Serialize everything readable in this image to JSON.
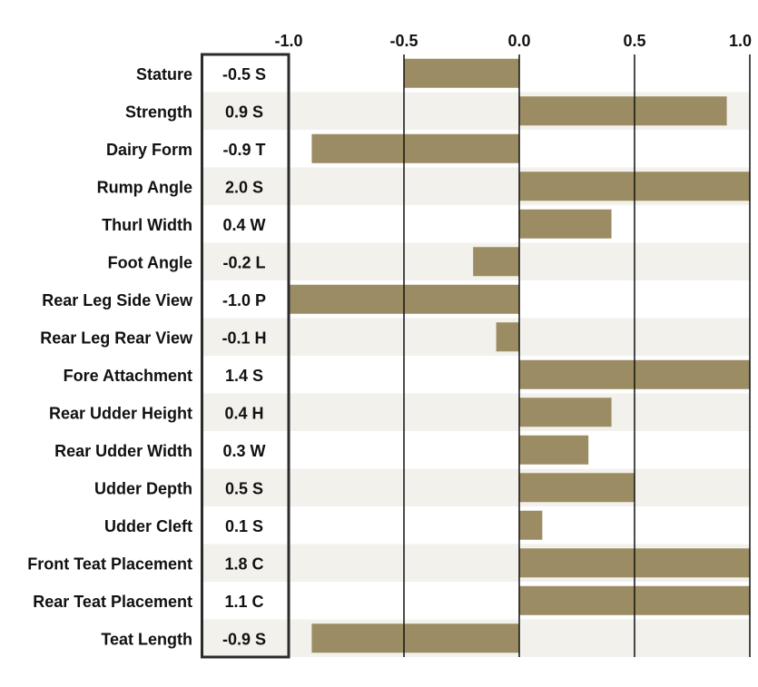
{
  "chart_data": {
    "type": "bar",
    "orientation": "horizontal",
    "categories": [
      "Stature",
      "Strength",
      "Dairy Form",
      "Rump Angle",
      "Thurl Width",
      "Foot Angle",
      "Rear Leg Side View",
      "Rear Leg Rear View",
      "Fore Attachment",
      "Rear Udder Height",
      "Rear Udder Width",
      "Udder Depth",
      "Udder Cleft",
      "Front Teat Placement",
      "Rear Teat Placement",
      "Teat Length"
    ],
    "values": [
      -0.5,
      0.9,
      -0.9,
      2.0,
      0.4,
      -0.2,
      -1.0,
      -0.1,
      1.4,
      0.4,
      0.3,
      0.5,
      0.1,
      1.8,
      1.1,
      -0.9
    ],
    "value_labels": [
      "-0.5 S",
      "0.9 S",
      "-0.9 T",
      "2.0 S",
      "0.4 W",
      "-0.2 L",
      "-1.0 P",
      "-0.1 H",
      "1.4 S",
      "0.4 H",
      "0.3 W",
      "0.5 S",
      "0.1 S",
      "1.8 C",
      "1.1 C",
      "-0.9 S"
    ],
    "xlim": [
      -1.0,
      1.0
    ],
    "ticks": [
      -1.0,
      -0.5,
      0.0,
      0.5,
      1.0
    ],
    "tick_labels": [
      "-1.0",
      "-0.5",
      "0.0",
      "0.5",
      "1.0"
    ],
    "title": "",
    "xlabel": "",
    "ylabel": "",
    "bar_color": "#9b8c63",
    "stripe_color": "#f3f1ec"
  }
}
